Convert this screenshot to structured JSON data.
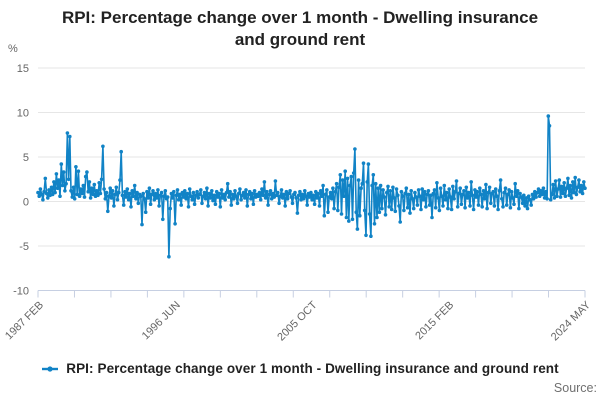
{
  "title": "RPI: Percentage change over 1 month - Dwelling insurance and ground rent",
  "y_axis_unit": "%",
  "source_label": "Source:",
  "legend": {
    "label": "RPI: Percentage change over 1 month - Dwelling insurance and ground rent",
    "marker": "line-with-dot-icon"
  },
  "colors": {
    "series": "#1183c6",
    "grid": "#e6e6e6",
    "axis": "#c6cfe2",
    "tick_label": "#666666",
    "title": "#222222",
    "source": "#707070"
  },
  "chart_data": {
    "type": "line",
    "title": "RPI: Percentage change over 1 month - Dwelling insurance and ground rent",
    "xlabel": "",
    "ylabel": "%",
    "ylim": [
      -10,
      15
    ],
    "y_ticks": [
      15,
      10,
      5,
      0,
      -5,
      -10
    ],
    "x_tick_labels": [
      "1987 FEB",
      "1996 JUN",
      "2005 OCT",
      "2015 FEB",
      "2024 MAY"
    ],
    "x_minor_tick_count": 16,
    "grid": "horizontal",
    "legend_position": "bottom",
    "markers": true,
    "series": [
      {
        "name": "RPI: Percentage change over 1 month - Dwelling insurance and ground rent",
        "frequency": "monthly",
        "start": "1987 FEB",
        "end": "2024 MAY",
        "values": [
          1.0,
          0.6,
          1.4,
          0.8,
          0.2,
          1.1,
          2.6,
          0.9,
          0.4,
          1.3,
          0.7,
          1.6,
          0.8,
          2.2,
          1.0,
          3.1,
          1.5,
          2.4,
          0.6,
          4.2,
          1.8,
          3.3,
          1.2,
          2.0,
          7.7,
          2.5,
          7.3,
          1.2,
          0.5,
          1.6,
          0.3,
          3.9,
          0.8,
          3.4,
          0.6,
          1.4,
          0.9,
          1.8,
          0.5,
          2.8,
          3.3,
          1.1,
          2.2,
          0.4,
          1.5,
          0.8,
          1.9,
          0.6,
          1.2,
          0.7,
          2.1,
          0.9,
          2.5,
          6.2,
          1.4,
          0.3,
          1.0,
          -1.1,
          0.6,
          1.5,
          0.4,
          1.2,
          -0.5,
          0.8,
          1.6,
          0.2,
          1.0,
          2.4,
          5.6,
          0.7,
          -0.4,
          1.1,
          0.5,
          1.4,
          0.2,
          0.9,
          -0.6,
          1.2,
          0.6,
          1.8,
          0.3,
          1.0,
          -0.2,
          0.8,
          0.6,
          -2.6,
          0.9,
          0.3,
          -1.2,
          1.1,
          0.4,
          1.5,
          -0.3,
          0.8,
          1.2,
          0.2,
          0.9,
          0.4,
          1.3,
          -0.5,
          0.7,
          1.0,
          -2.0,
          0.6,
          1.2,
          0.3,
          0.5,
          -6.2,
          -0.8,
          0.9,
          0.4,
          1.1,
          -2.5,
          0.7,
          1.3,
          0.2,
          0.8,
          -0.4,
          1.0,
          0.5,
          1.2,
          0.3,
          0.9,
          -0.6,
          1.4,
          0.6,
          0.2,
          1.0,
          -0.3,
          0.7,
          1.1,
          0.4,
          0.8,
          1.3,
          -0.2,
          0.6,
          1.0,
          0.3,
          1.5,
          -0.5,
          0.9,
          0.4,
          1.2,
          0.1,
          0.7,
          -0.3,
          1.1,
          0.5,
          0.9,
          -0.6,
          1.3,
          0.4,
          0.8,
          0.2,
          1.0,
          2.0,
          0.5,
          1.1,
          -0.4,
          0.8,
          0.3,
          1.2,
          0.6,
          -0.2,
          0.9,
          1.4,
          0.2,
          0.7,
          1.0,
          0.4,
          1.3,
          -0.5,
          0.8,
          1.1,
          0.3,
          0.9,
          -0.3,
          1.2,
          0.5,
          0.8,
          0.6,
          1.0,
          0.2,
          1.4,
          0.7,
          2.2,
          0.4,
          1.1,
          -0.4,
          0.8,
          1.2,
          0.3,
          0.9,
          0.5,
          2.3,
          0.7,
          1.0,
          -0.2,
          0.6,
          1.3,
          0.4,
          0.8,
          -0.5,
          1.1,
          0.3,
          0.9,
          1.2,
          0.5,
          -0.2,
          0.8,
          1.0,
          0.4,
          -1.3,
          0.7,
          1.1,
          0.2,
          0.8,
          0.3,
          1.2,
          0.6,
          -0.4,
          0.9,
          0.5,
          1.0,
          0.2,
          0.7,
          -0.3,
          1.1,
          0.4,
          0.9,
          -0.5,
          1.2,
          0.6,
          1.8,
          -1.6,
          0.8,
          1.3,
          -1.2,
          0.5,
          1.0,
          0.3,
          1.5,
          -0.8,
          1.1,
          2.0,
          -1.0,
          1.6,
          3.0,
          -1.4,
          2.4,
          0.6,
          3.4,
          -1.8,
          2.6,
          -2.2,
          1.8,
          2.8,
          -2.0,
          3.2,
          5.9,
          -1.2,
          -3.1,
          2.4,
          -1.6,
          1.5,
          2.0,
          4.3,
          -1.0,
          -3.8,
          2.2,
          4.2,
          -1.4,
          -3.9,
          1.8,
          3.0,
          -2.5,
          2.0,
          -1.8,
          1.5,
          -1.2,
          1.8,
          -0.8,
          1.3,
          0.5,
          -1.5,
          1.0,
          1.7,
          -0.6,
          1.2,
          -0.9,
          1.6,
          0.4,
          -1.1,
          1.4,
          0.7,
          -0.5,
          -2.3,
          1.1,
          0.6,
          -1.0,
          0.9,
          1.5,
          -0.7,
          0.8,
          -1.3,
          1.2,
          0.3,
          -0.8,
          1.0,
          0.5,
          -0.4,
          1.3,
          0.6,
          -0.9,
          1.4,
          0.2,
          1.1,
          -0.6,
          0.8,
          1.2,
          -0.4,
          0.7,
          -1.8,
          0.9,
          1.3,
          -0.7,
          2.1,
          0.4,
          -1.0,
          1.5,
          0.6,
          -0.5,
          1.8,
          0.2,
          1.0,
          -0.8,
          1.4,
          0.5,
          -0.9,
          1.7,
          0.3,
          1.1,
          2.3,
          -0.6,
          0.9,
          1.5,
          -0.3,
          0.8,
          1.2,
          -0.7,
          1.6,
          0.4,
          1.0,
          -0.5,
          2.2,
          0.7,
          -0.9,
          1.3,
          0.5,
          1.1,
          -0.4,
          1.5,
          0.8,
          -0.6,
          1.2,
          0.3,
          1.9,
          -0.8,
          1.0,
          1.6,
          -0.2,
          0.9,
          1.1,
          -0.5,
          1.4,
          0.6,
          -0.9,
          1.2,
          2.4,
          0.3,
          -0.6,
          1.0,
          1.5,
          -0.4,
          0.8,
          1.3,
          -0.7,
          1.1,
          0.4,
          -0.3,
          2.0,
          0.6,
          1.2,
          -0.8,
          0.9,
          0.5,
          -0.2,
          0.7,
          -0.5,
          0.4,
          -0.8,
          0.6,
          0.2,
          -0.4,
          0.8,
          0.3,
          1.1,
          0.5,
          1.0,
          1.4,
          0.6,
          1.2,
          0.8,
          1.5,
          0.4,
          1.1,
          0.3,
          9.6,
          8.5,
          0.2,
          0.8,
          1.9,
          0.4,
          2.3,
          0.6,
          1.4,
          2.4,
          0.5,
          1.7,
          0.9,
          2.1,
          0.6,
          1.5,
          2.6,
          0.7,
          1.8,
          0.4,
          2.2,
          1.0,
          2.7,
          0.8,
          1.6,
          2.4,
          1.1,
          1.8,
          0.9,
          2.2,
          1.5
        ]
      }
    ]
  }
}
